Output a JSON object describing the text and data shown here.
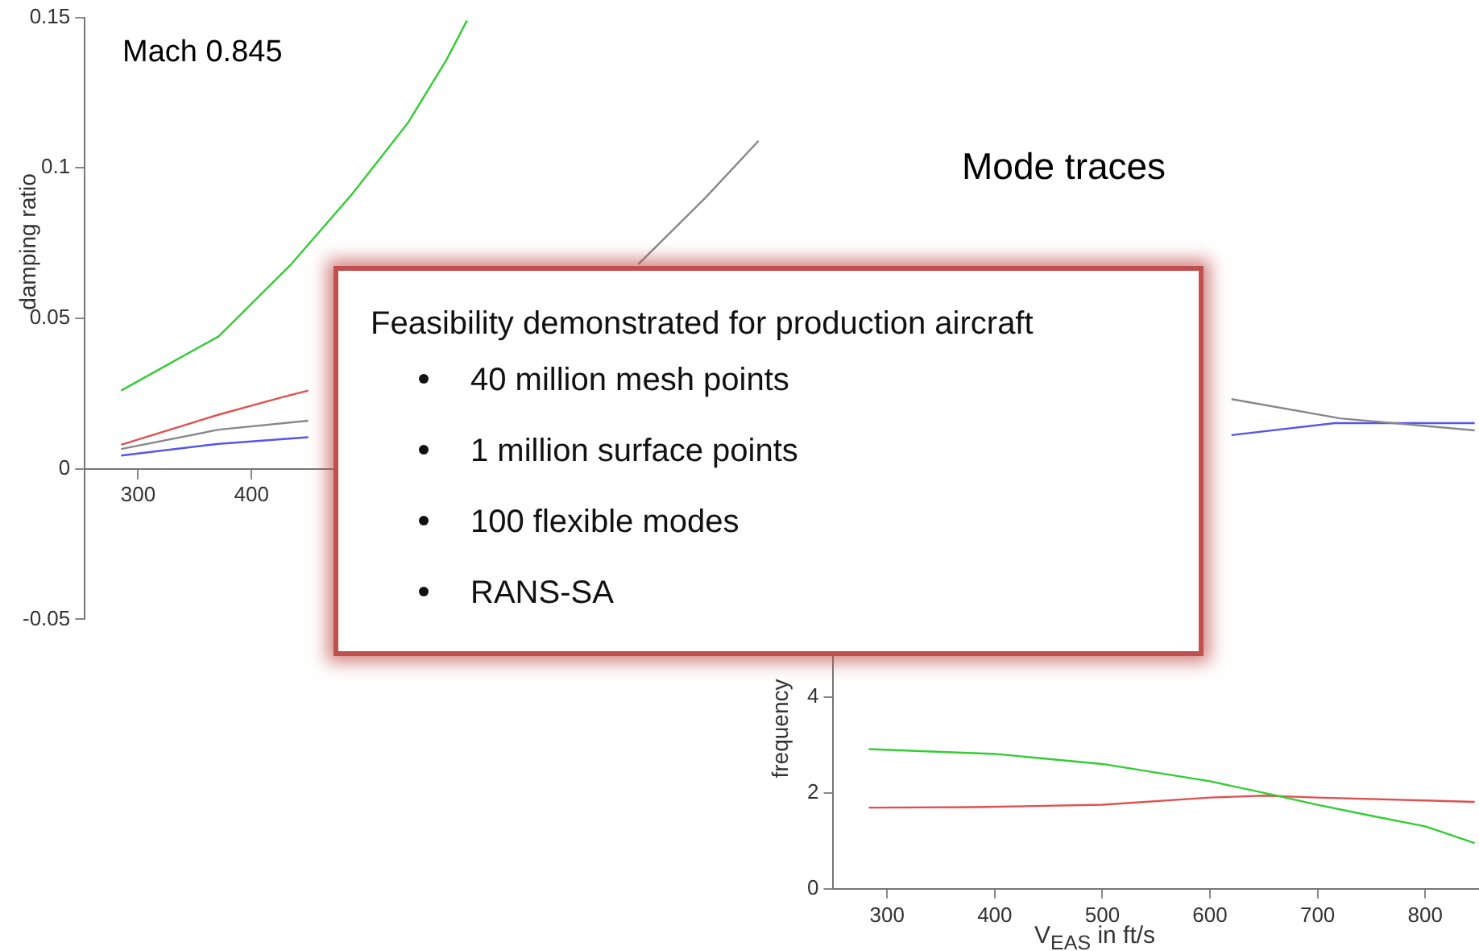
{
  "chart_data": [
    {
      "type": "line",
      "ylabel": "damping ratio",
      "xlim": [
        253,
        870
      ],
      "xticks": [
        300,
        400
      ],
      "ylim": [
        -0.05,
        0.15
      ],
      "yticks": [
        -0.05,
        0,
        0.05,
        0.1,
        0.15
      ],
      "grid": false,
      "legend": false,
      "marker": "none",
      "annotations": [
        "Mach 0.845",
        "Feasibility demonstrated for production aircraft",
        "40 million mesh points",
        "1 million surface points",
        "100 flexible modes",
        "RANS-SA"
      ],
      "series": [
        {
          "color": "#33cc33",
          "x": [
            285,
            371,
            435,
            488,
            538,
            572,
            590
          ],
          "values": [
            0.026,
            0.044,
            0.068,
            0.091,
            0.115,
            0.136,
            0.149
          ]
        },
        {
          "color": "#e05050",
          "x": [
            285,
            371,
            429,
            450
          ],
          "values": [
            0.008,
            0.018,
            0.024,
            0.026
          ]
        },
        {
          "color": "#888888",
          "x": [
            285,
            371,
            450,
            600,
            741,
            800,
            847
          ],
          "values": [
            0.0066,
            0.013,
            0.016,
            null,
            0.068,
            0.09,
            0.109
          ]
        },
        {
          "color": "#5555ee",
          "x": [
            285,
            371,
            450
          ],
          "values": [
            0.0044,
            0.0083,
            0.0105
          ]
        }
      ]
    },
    {
      "type": "line",
      "title": "Mode traces",
      "xlabel": "V$_{EAS}$ in ft/s",
      "ylabel": "frequency",
      "xlim": [
        250,
        850
      ],
      "xticks": [
        300,
        400,
        500,
        600,
        700,
        800
      ],
      "ylim": [
        0,
        11
      ],
      "yticks": [
        0,
        2,
        4
      ],
      "grid": false,
      "legend": false,
      "marker": "none",
      "series": [
        {
          "color": "#33cc33",
          "x": [
            283,
            400,
            500,
            600,
            660,
            700,
            750,
            800,
            846
          ],
          "values": [
            2.91,
            2.81,
            2.6,
            2.24,
            1.95,
            1.75,
            1.52,
            1.3,
            0.95
          ]
        },
        {
          "color": "#e05050",
          "x": [
            283,
            380,
            500,
            600,
            650,
            700,
            800,
            846
          ],
          "values": [
            1.69,
            1.7,
            1.75,
            1.9,
            1.94,
            1.9,
            1.84,
            1.81
          ]
        },
        {
          "color": "#888888",
          "x": [
            620,
            721,
            846
          ],
          "values": [
            10.2,
            9.8,
            9.55
          ]
        },
        {
          "color": "#5555ee",
          "x": [
            620,
            716,
            735,
            846
          ],
          "values": [
            9.45,
            9.7,
            9.7,
            9.7
          ]
        }
      ]
    }
  ]
}
